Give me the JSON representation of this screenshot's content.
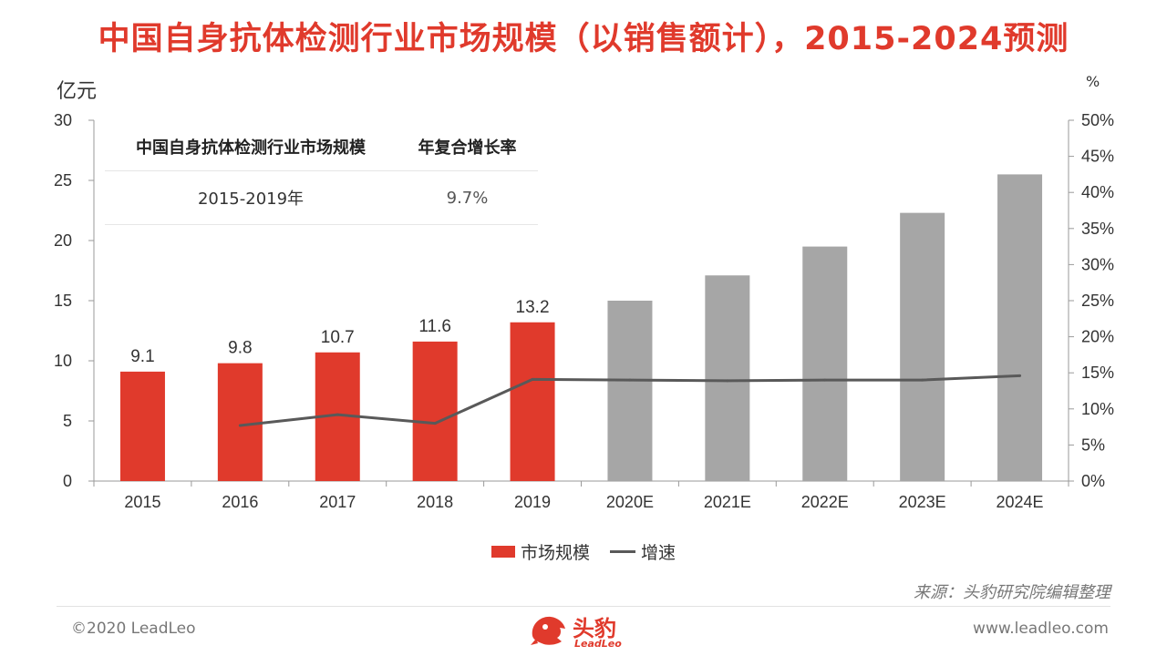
{
  "title": "中国自身抗体检测行业市场规模（以销售额计），2015-2024预测",
  "units": {
    "left": "亿元",
    "right": "%"
  },
  "colors": {
    "actual_bar": "#e03a2c",
    "forecast_bar": "#a6a6a6",
    "growth_line": "#595959",
    "title": "#e03a2c"
  },
  "cagr_table": {
    "headers": [
      "中国自身抗体检测行业市场规模",
      "年复合增长率"
    ],
    "row": [
      "2015-2019年",
      "9.7%"
    ]
  },
  "chart_data": {
    "type": "bar",
    "categories": [
      "2015",
      "2016",
      "2017",
      "2018",
      "2019",
      "2020E",
      "2021E",
      "2022E",
      "2023E",
      "2024E"
    ],
    "series": [
      {
        "name": "市场规模",
        "type": "bar",
        "axis": "left",
        "values": [
          9.1,
          9.8,
          10.7,
          11.6,
          13.2,
          15.0,
          17.1,
          19.5,
          22.3,
          25.5
        ],
        "forecast_from_index": 5,
        "data_labels": [
          "9.1",
          "9.8",
          "10.7",
          "11.6",
          "13.2",
          null,
          null,
          null,
          null,
          null
        ]
      },
      {
        "name": "增速",
        "type": "line",
        "axis": "right",
        "values": [
          null,
          7.7,
          9.2,
          8.0,
          14.1,
          14.0,
          13.9,
          14.0,
          14.0,
          14.6
        ]
      }
    ],
    "y_left": {
      "min": 0,
      "max": 30,
      "ticks": [
        "0",
        "5",
        "10",
        "15",
        "20",
        "25",
        "30"
      ]
    },
    "y_right": {
      "min": 0,
      "max": 50,
      "ticks": [
        "0%",
        "5%",
        "10%",
        "15%",
        "20%",
        "25%",
        "30%",
        "35%",
        "40%",
        "45%",
        "50%"
      ]
    },
    "grid": false,
    "legend_position": "bottom"
  },
  "legend": {
    "bar_label": "市场规模",
    "line_label": "增速"
  },
  "source": "来源：头豹研究院编辑整理",
  "footer": {
    "copyright": "©2020 LeadLeo",
    "website": "www.leadleo.com"
  },
  "logo": {
    "text": "头豹",
    "sub": "LeadLeo"
  }
}
